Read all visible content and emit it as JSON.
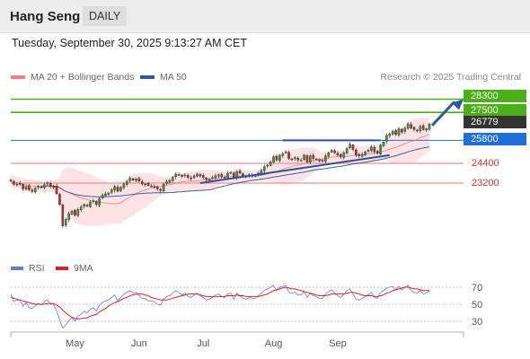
{
  "header": {
    "title": "Hang Seng",
    "timeframe": "DAILY"
  },
  "timestamp": "Tuesday, September 30, 2025 9:13:27 AM CET",
  "legend": [
    {
      "label": "MA 20 + Bollinger Bands",
      "color": "#f08080"
    },
    {
      "label": "MA 50",
      "color": "#2c5aa0"
    }
  ],
  "credit": "Research © 2025 Trading Central",
  "rsi_legend": [
    {
      "label": "RSI",
      "color": "#5b7fd6"
    },
    {
      "label": "9MA",
      "color": "#e02020"
    }
  ],
  "colors": {
    "target": "#4caf1a",
    "current": "#333333",
    "pivot": "#1f6fd6",
    "support": "#d9302f",
    "up_candle": "#3a9a3a",
    "down_candle": "#c62828",
    "arrow": "#2c5aa0"
  },
  "levels": {
    "targets": [
      "28300",
      "27500"
    ],
    "current": "26779",
    "pivot": "25800",
    "supports": [
      "24400",
      "23200"
    ]
  },
  "chart_data": [
    {
      "type": "candlestick",
      "ylim": [
        20900,
        28500
      ],
      "x_labels": [
        "May",
        "Jun",
        "Jul",
        "Aug",
        "Sep"
      ],
      "series": [
        {
          "name": "Price",
          "close": [
            23330,
            23130,
            23140,
            23150,
            22850,
            23000,
            22800,
            22700,
            22900,
            23000,
            22950,
            23100,
            23220,
            22990,
            22990,
            22550,
            21900,
            20600,
            21000,
            21350,
            21500,
            21250,
            21600,
            21750,
            21900,
            21800,
            22050,
            22120,
            21900,
            22250,
            22470,
            22550,
            22600,
            22800,
            22990,
            22700,
            22950,
            23150,
            23300,
            23500,
            23380,
            23450,
            23320,
            23150,
            23150,
            23050,
            23030,
            22950,
            22850,
            22750,
            23130,
            23280,
            23380,
            23550,
            23750,
            23700,
            23600,
            23700,
            23550,
            23480,
            23650,
            23750,
            23620,
            23550,
            23400,
            23450,
            23550,
            23650,
            23700,
            23600,
            23550,
            23800,
            23850,
            23550,
            23900,
            23800,
            23650,
            23600,
            23700,
            23650,
            23650,
            23800,
            23980,
            24200,
            24300,
            24500,
            24800,
            24600,
            24900,
            25000,
            25100,
            24700,
            24650,
            24750,
            24600,
            24600,
            24900,
            24500,
            24850,
            24700,
            24650,
            24550,
            24550,
            24850,
            25050,
            25200,
            25050,
            24900,
            24800,
            25050,
            25300,
            25550,
            25250,
            24900,
            24850,
            24950,
            25100,
            25200,
            25400,
            25100,
            25000,
            25500,
            25700,
            26100,
            26200,
            26350,
            26150,
            26500,
            26300,
            26550,
            26800,
            26550,
            26450,
            26400,
            26650,
            26450,
            26500,
            26779
          ]
        }
      ],
      "annotations": [
        "Bollinger Bands",
        "MA 20",
        "MA 50",
        "ascending trendline",
        "resistance line",
        "target arrow"
      ]
    },
    {
      "type": "line",
      "title": "RSI",
      "ylim": [
        20,
        80
      ],
      "yticks": [
        30,
        50,
        70
      ],
      "series": [
        {
          "name": "RSI",
          "values": [
            62,
            53,
            55,
            55,
            48,
            52,
            46,
            45,
            48,
            51,
            49,
            53,
            55,
            50,
            50,
            42,
            32,
            22,
            26,
            31,
            34,
            30,
            36,
            38,
            42,
            40,
            44,
            46,
            42,
            49,
            52,
            54,
            55,
            58,
            61,
            54,
            58,
            62,
            64,
            66,
            63,
            64,
            60,
            57,
            57,
            54,
            54,
            53,
            50,
            49,
            56,
            59,
            60,
            63,
            66,
            64,
            61,
            63,
            59,
            58,
            61,
            63,
            60,
            58,
            55,
            56,
            58,
            61,
            62,
            59,
            58,
            62,
            63,
            56,
            63,
            60,
            57,
            56,
            58,
            57,
            57,
            60,
            63,
            66,
            68,
            70,
            72,
            66,
            70,
            71,
            72,
            64,
            63,
            64,
            61,
            61,
            65,
            58,
            63,
            60,
            59,
            57,
            57,
            62,
            65,
            67,
            63,
            60,
            58,
            62,
            66,
            68,
            62,
            56,
            55,
            57,
            59,
            61,
            64,
            58,
            57,
            64,
            66,
            69,
            70,
            71,
            67,
            71,
            67,
            70,
            72,
            66,
            64,
            63,
            66,
            62,
            63,
            66
          ]
        },
        {
          "name": "9MA",
          "values": [
            58,
            57,
            56,
            55,
            54,
            53,
            52,
            51,
            50,
            50,
            50,
            50,
            51,
            51,
            51,
            49,
            47,
            43,
            40,
            37,
            35,
            33,
            33,
            33,
            34,
            34,
            36,
            37,
            38,
            41,
            43,
            45,
            48,
            50,
            52,
            53,
            55,
            57,
            58,
            60,
            61,
            62,
            62,
            62,
            61,
            60,
            58,
            57,
            56,
            55,
            55,
            55,
            56,
            57,
            58,
            59,
            60,
            61,
            62,
            62,
            62,
            62,
            61,
            60,
            59,
            59,
            59,
            59,
            59,
            59,
            59,
            60,
            60,
            60,
            61,
            60,
            60,
            59,
            59,
            59,
            59,
            59,
            60,
            61,
            62,
            64,
            66,
            67,
            68,
            69,
            70,
            69,
            68,
            68,
            67,
            66,
            65,
            64,
            63,
            62,
            61,
            60,
            60,
            60,
            61,
            62,
            62,
            62,
            62,
            62,
            63,
            64,
            64,
            63,
            62,
            61,
            60,
            60,
            60,
            59,
            59,
            60,
            61,
            63,
            64,
            66,
            67,
            68,
            69,
            70,
            70,
            69,
            68,
            68,
            67,
            66,
            66,
            66
          ]
        }
      ]
    }
  ]
}
